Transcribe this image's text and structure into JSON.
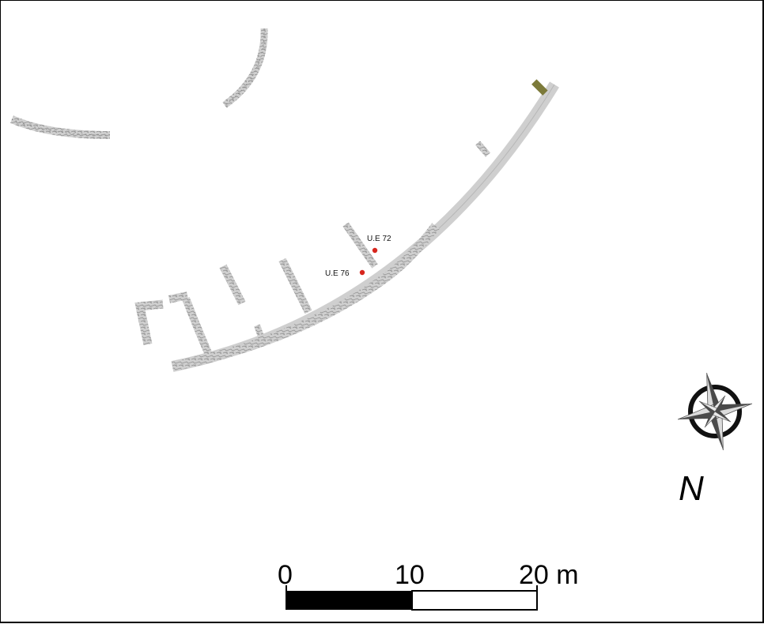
{
  "map": {
    "features": {
      "ue72_label": "U.E 72",
      "ue76_label": "U.E 76"
    },
    "north_arrow": {
      "label": "N"
    },
    "scale_bar": {
      "tick_0": "0",
      "tick_10": "10",
      "tick_20": "20 m",
      "max_value": 20,
      "unit": "m"
    },
    "colors": {
      "wall_fill": "#cccccc",
      "wall_texture": "#8f8f8f",
      "marker": "#d7261e",
      "olive_block": "#7c7a3a",
      "scale_black": "#000000"
    }
  }
}
